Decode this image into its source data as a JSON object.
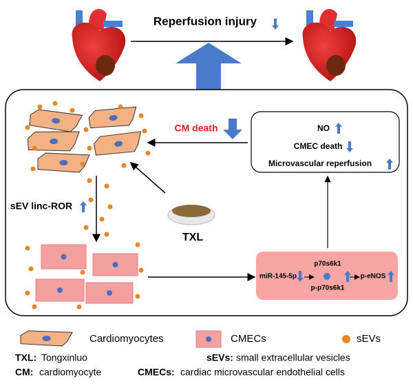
{
  "header": {
    "title": "Reperfusion injury"
  },
  "box": {
    "cm_death": "CM death",
    "outcomes": [
      "NO",
      "CMEC death",
      "Microvascular reperfusion"
    ],
    "sev": "sEV linc-ROR",
    "drug": "TXL",
    "pathway": {
      "top": "p70s6k1",
      "left": "miR-145-5p",
      "bottom": "p-p70s6k1",
      "right": "p-eNOS"
    }
  },
  "legend": [
    "Cardiomyocytes",
    "CMECs",
    "sEVs"
  ],
  "abbreviations": [
    {
      "term": "TXL:",
      "meaning": "Tongxinluo"
    },
    {
      "term": "sEVs:",
      "meaning": "small extracellular vesicles"
    },
    {
      "term": "CM:",
      "meaning": "cardiomyocyte"
    },
    {
      "term": "CMECs:",
      "meaning": "cardiac microvascular endothelial cells"
    }
  ]
}
